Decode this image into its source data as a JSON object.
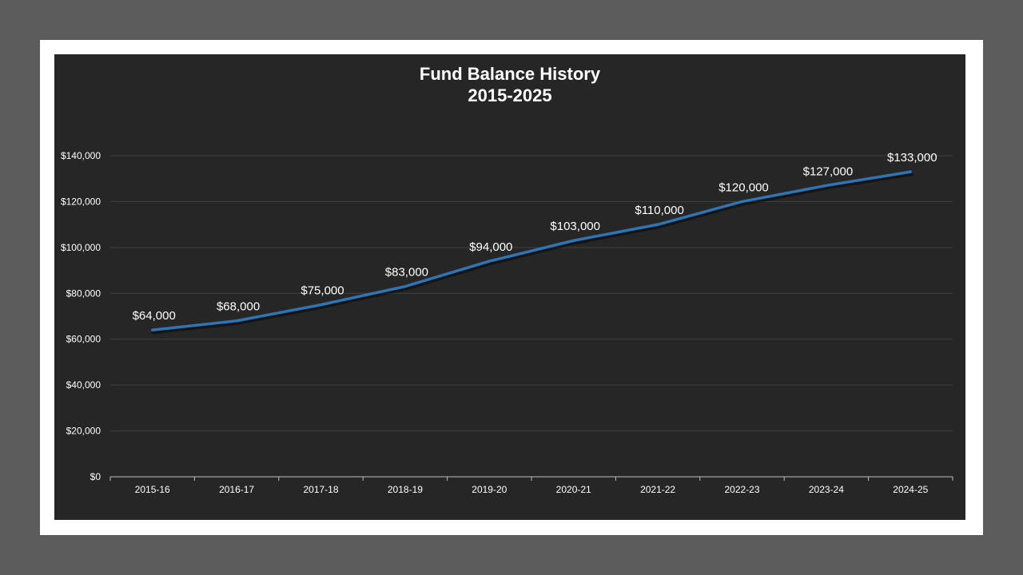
{
  "chart_data": {
    "type": "line",
    "title": "Fund Balance History",
    "subtitle": "2015-2025",
    "xlabel": "",
    "ylabel": "",
    "categories": [
      "2015-16",
      "2016-17",
      "2017-18",
      "2018-19",
      "2019-20",
      "2020-21",
      "2021-22",
      "2022-23",
      "2023-24",
      "2024-25"
    ],
    "series": [
      {
        "values": [
          64000,
          68000,
          75000,
          83000,
          94000,
          103000,
          110000,
          120000,
          127000,
          133000
        ],
        "data_labels": [
          "$64,000",
          "$68,000",
          "$75,000",
          "$83,000",
          "$94,000",
          "$103,000",
          "$110,000",
          "$120,000",
          "$127,000",
          "$133,000"
        ],
        "color": "#2e75b6"
      }
    ],
    "ylim": [
      0,
      140000
    ],
    "y_ticks": [
      0,
      20000,
      40000,
      60000,
      80000,
      100000,
      120000,
      140000
    ],
    "y_tick_labels": [
      "$0",
      "$20,000",
      "$40,000",
      "$60,000",
      "$80,000",
      "$100,000",
      "$120,000",
      "$140,000"
    ],
    "grid": true,
    "legend": "none",
    "colors": {
      "outer_background": "#5c5c5c",
      "frame": "#ffffff",
      "plot_background": "#262626",
      "gridline": "#404040",
      "axis": "#bfbfbf",
      "text": "#ffffff"
    }
  }
}
